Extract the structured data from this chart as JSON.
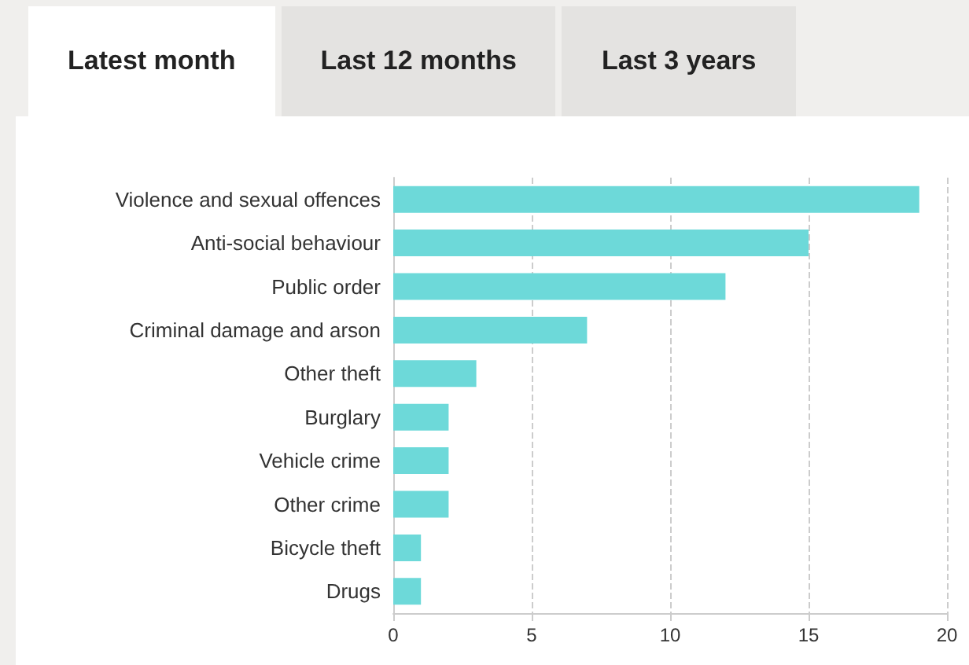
{
  "chart_data": {
    "type": "bar",
    "orientation": "horizontal",
    "categories": [
      "Violence and sexual offences",
      "Anti-social behaviour",
      "Public order",
      "Criminal damage and arson",
      "Other theft",
      "Burglary",
      "Vehicle crime",
      "Other crime",
      "Bicycle theft",
      "Drugs"
    ],
    "values": [
      19,
      15,
      12,
      7,
      3,
      2,
      2,
      2,
      1,
      1
    ],
    "color": "#6dd9d9",
    "xlim": [
      0,
      20
    ],
    "xticks": [
      0,
      5,
      10,
      15,
      20
    ],
    "grid": "x",
    "annotations": [
      "Latest month",
      "Last 12 months",
      "Last 3 years"
    ]
  }
}
